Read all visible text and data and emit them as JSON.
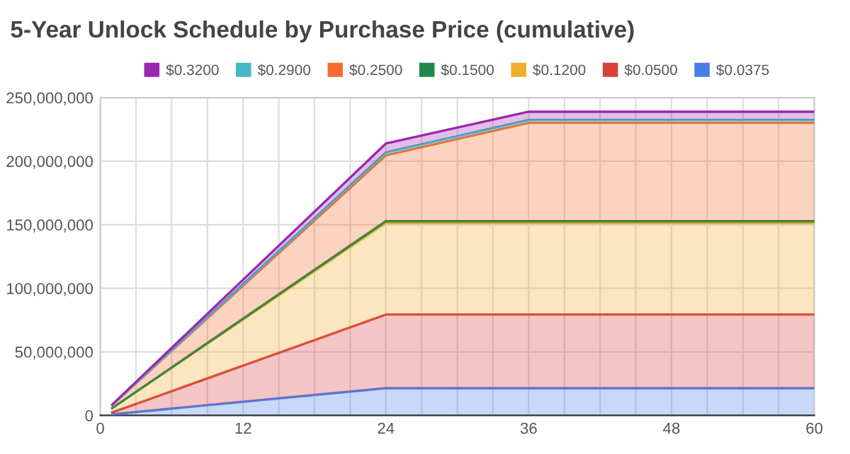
{
  "chart_data": {
    "type": "area",
    "stacked": true,
    "title": "5-Year Unlock Schedule by Purchase Price (cumulative)",
    "x": [
      1,
      24,
      36,
      60
    ],
    "series": [
      {
        "name": "$0.0375",
        "color": "#4a7de8",
        "values": [
          900000,
          21400000,
          21400000,
          21400000
        ]
      },
      {
        "name": "$0.0500",
        "color": "#d6403a",
        "values": [
          1500000,
          58000000,
          58000000,
          58000000
        ]
      },
      {
        "name": "$0.1200",
        "color": "#f2ad2a",
        "values": [
          3300000,
          72000000,
          72000000,
          72000000
        ]
      },
      {
        "name": "$0.1500",
        "color": "#1f8a4c",
        "values": [
          100000,
          1500000,
          1500000,
          1500000
        ]
      },
      {
        "name": "$0.2500",
        "color": "#f56d2e",
        "values": [
          2300000,
          51700000,
          77300000,
          77300000
        ]
      },
      {
        "name": "$0.2900",
        "color": "#4ab5c2",
        "values": [
          100000,
          2300000,
          2200000,
          2200000
        ]
      },
      {
        "name": "$0.3200",
        "color": "#9c27b0",
        "values": [
          300000,
          7000000,
          6500000,
          6500000
        ]
      }
    ],
    "xlim": [
      0,
      60
    ],
    "ylim": [
      0,
      250000000
    ],
    "xticks": [
      0,
      {
        "value": 3,
        "label": null
      },
      {
        "value": 6,
        "label": null
      },
      {
        "value": 9,
        "label": null
      },
      12,
      {
        "value": 15,
        "label": null
      },
      {
        "value": 18,
        "label": null
      },
      {
        "value": 21,
        "label": null
      },
      24,
      {
        "value": 27,
        "label": null
      },
      {
        "value": 30,
        "label": null
      },
      {
        "value": 33,
        "label": null
      },
      36,
      {
        "value": 39,
        "label": null
      },
      {
        "value": 42,
        "label": null
      },
      {
        "value": 45,
        "label": null
      },
      48,
      {
        "value": 51,
        "label": null
      },
      {
        "value": 54,
        "label": null
      },
      {
        "value": 57,
        "label": null
      },
      60
    ],
    "yticks": [
      0,
      {
        "value": 50000000,
        "label": "50,000,000"
      },
      {
        "value": 100000000,
        "label": "100,000,000"
      },
      {
        "value": 150000000,
        "label": "150,000,000"
      },
      {
        "value": 200000000,
        "label": "200,000,000"
      },
      {
        "value": 250000000,
        "label": "250,000,000"
      }
    ],
    "grid": true,
    "legend": "top"
  }
}
